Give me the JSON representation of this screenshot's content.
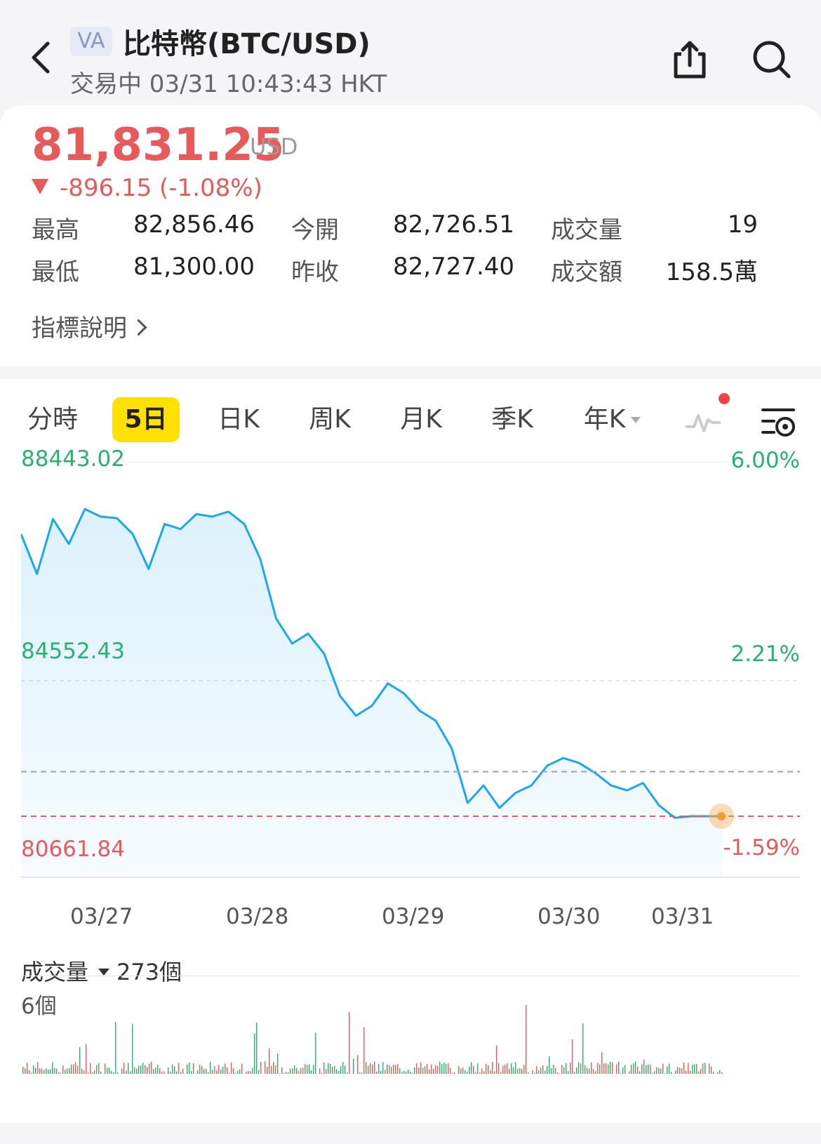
{
  "header": {
    "badge": "VA",
    "title": "比特幣(BTC/USD)",
    "status_line": "交易中 03/31 10:43:43 HKT"
  },
  "quote": {
    "price": "81,831.25",
    "currency": "USD",
    "change": "-896.15 (-1.08%)",
    "stats": [
      {
        "label": "最高",
        "value": "82,856.46"
      },
      {
        "label": "今開",
        "value": "82,726.51"
      },
      {
        "label": "成交量",
        "value": "19"
      },
      {
        "label": "最低",
        "value": "81,300.00"
      },
      {
        "label": "昨收",
        "value": "82,727.40"
      },
      {
        "label": "成交額",
        "value": "158.5萬"
      }
    ],
    "indicator_link": "指標說明"
  },
  "tabs": [
    {
      "label": "分時"
    },
    {
      "label": "5日"
    },
    {
      "label": "日K"
    },
    {
      "label": "周K"
    },
    {
      "label": "月K"
    },
    {
      "label": "季K"
    },
    {
      "label": "年K"
    }
  ],
  "colors": {
    "up": "#28b26e",
    "down": "#e85a5a",
    "line": "#1aa7f0",
    "tab_active": "#ffe000"
  },
  "icons": [
    "back-icon",
    "share-icon",
    "search-icon",
    "indicator-line-icon",
    "chart-settings-icon"
  ],
  "chart_data": {
    "type": "line",
    "y_top_label": "88443.02",
    "y_mid_label": "84552.43",
    "y_bottom_label": "80661.84",
    "pct_top_label": "6.00%",
    "pct_mid_label": "2.21%",
    "pct_bottom_label": "-1.59%",
    "x_labels": [
      "03/27",
      "03/28",
      "03/29",
      "03/30",
      "03/31"
    ],
    "ylim": [
      80661.84,
      88443.02
    ],
    "prev_close": 82727.4,
    "current": 81831.25,
    "x": [
      0.0,
      0.1,
      0.2,
      0.3,
      0.4,
      0.5,
      0.6,
      0.7,
      0.8,
      0.9,
      1.0,
      1.1,
      1.2,
      1.3,
      1.4,
      1.5,
      1.6,
      1.7,
      1.8,
      1.9,
      2.0,
      2.1,
      2.2,
      2.3,
      2.4,
      2.5,
      2.6,
      2.7,
      2.8,
      2.9,
      3.0,
      3.1,
      3.2,
      3.3,
      3.4,
      3.5,
      3.6,
      3.7,
      3.8,
      3.9,
      4.0,
      4.1,
      4.2,
      4.3,
      4.4
    ],
    "values": [
      87500,
      86700,
      87800,
      87300,
      88000,
      87850,
      87820,
      87500,
      86800,
      87700,
      87600,
      87900,
      87850,
      87950,
      87700,
      87000,
      85800,
      85300,
      85500,
      85100,
      84250,
      83850,
      84050,
      84500,
      84300,
      83950,
      83750,
      83200,
      82100,
      82450,
      82000,
      82300,
      82450,
      82850,
      83000,
      82900,
      82700,
      82450,
      82350,
      82500,
      82050,
      81800,
      81831.25,
      81831.25,
      81831.25
    ],
    "volume": {
      "label": "成交量",
      "total": "273個",
      "max_label": "6個",
      "max_value": 6
    }
  }
}
